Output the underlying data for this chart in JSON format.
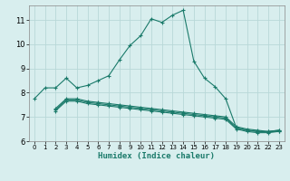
{
  "title": "",
  "xlabel": "Humidex (Indice chaleur)",
  "ylabel": "",
  "bg_color": "#d8eeee",
  "grid_color": "#b8d8d8",
  "line_color": "#1a7a6a",
  "xlim": [
    -0.5,
    23.5
  ],
  "ylim": [
    6.0,
    11.6
  ],
  "yticks": [
    6,
    7,
    8,
    9,
    10,
    11
  ],
  "xticks": [
    0,
    1,
    2,
    3,
    4,
    5,
    6,
    7,
    8,
    9,
    10,
    11,
    12,
    13,
    14,
    15,
    16,
    17,
    18,
    19,
    20,
    21,
    22,
    23
  ],
  "line1_x": [
    0,
    1,
    2,
    3,
    4,
    5,
    6,
    7,
    8,
    9,
    10,
    11,
    12,
    13,
    14,
    15,
    16,
    17,
    18,
    19,
    20,
    21,
    22,
    23
  ],
  "line1_y": [
    7.75,
    8.2,
    8.2,
    8.6,
    8.2,
    8.3,
    8.5,
    8.7,
    9.35,
    9.95,
    10.35,
    11.05,
    10.9,
    11.2,
    11.4,
    9.3,
    8.6,
    8.25,
    7.75,
    6.55,
    6.45,
    6.4,
    6.4,
    6.45
  ],
  "line2_x": [
    2,
    3,
    4,
    5,
    6,
    7,
    8,
    9,
    10,
    11,
    12,
    13,
    14,
    15,
    16,
    17,
    18,
    19,
    20,
    21,
    22,
    23
  ],
  "line2_y": [
    7.35,
    7.75,
    7.75,
    7.65,
    7.6,
    7.55,
    7.5,
    7.45,
    7.4,
    7.35,
    7.3,
    7.25,
    7.2,
    7.15,
    7.1,
    7.05,
    7.0,
    6.6,
    6.5,
    6.45,
    6.4,
    6.45
  ],
  "line3_x": [
    2,
    3,
    4,
    5,
    6,
    7,
    8,
    9,
    10,
    11,
    12,
    13,
    14,
    15,
    16,
    17,
    18,
    19,
    20,
    21,
    22,
    23
  ],
  "line3_y": [
    7.3,
    7.7,
    7.7,
    7.6,
    7.55,
    7.5,
    7.45,
    7.4,
    7.35,
    7.3,
    7.25,
    7.2,
    7.15,
    7.1,
    7.05,
    7.0,
    6.95,
    6.55,
    6.45,
    6.4,
    6.38,
    6.42
  ],
  "line4_x": [
    2,
    3,
    4,
    5,
    6,
    7,
    8,
    9,
    10,
    11,
    12,
    13,
    14,
    15,
    16,
    17,
    18,
    19,
    20,
    21,
    22,
    23
  ],
  "line4_y": [
    7.25,
    7.65,
    7.65,
    7.55,
    7.5,
    7.45,
    7.4,
    7.35,
    7.3,
    7.25,
    7.2,
    7.15,
    7.1,
    7.05,
    7.0,
    6.95,
    6.9,
    6.5,
    6.4,
    6.35,
    6.35,
    6.4
  ]
}
